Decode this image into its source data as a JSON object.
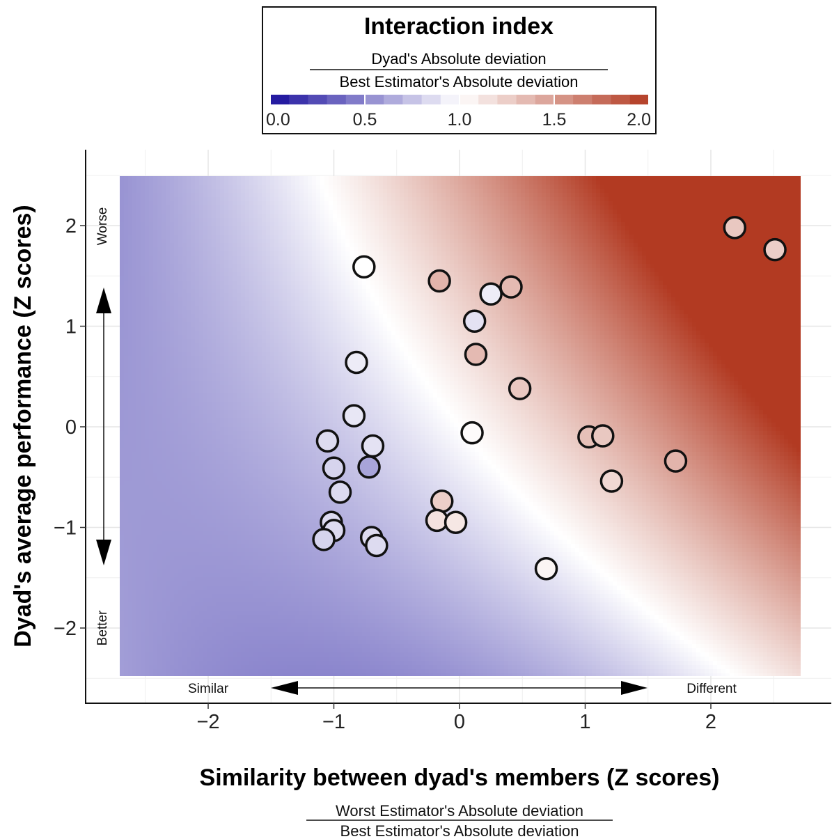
{
  "legend": {
    "title": "Interaction index",
    "numerator": "Dyad's Absolute deviation",
    "denominator": "Best Estimator's Absolute deviation",
    "ticks": [
      "0.0",
      "0.5",
      "1.0",
      "1.5",
      "2.0"
    ]
  },
  "colors": {
    "low": "#1a0f9c",
    "mid": "#ffffff",
    "high": "#b23a22",
    "point_stroke": "#111111",
    "grid": "#efefef"
  },
  "annotations": {
    "worse": "Worse",
    "better": "Better",
    "similar": "Similar",
    "different": "Different"
  },
  "x_subtitle": {
    "numerator": "Worst Estimator's Absolute deviation",
    "denominator": "Best Estimator's Absolute deviation"
  },
  "chart_data": {
    "type": "scatter",
    "title": "",
    "xlabel": "Similarity between dyad's members (Z scores)",
    "ylabel": "Dyad's average performance (Z scores)",
    "xlim": [
      -2.95,
      2.95
    ],
    "ylim": [
      -2.75,
      2.75
    ],
    "x_ticks": [
      -2,
      -1,
      0,
      1,
      2
    ],
    "y_ticks": [
      -2,
      -1,
      0,
      1,
      2
    ],
    "x_tick_labels": [
      "−2",
      "−1",
      "0",
      "1",
      "2"
    ],
    "y_tick_labels": [
      "−2",
      "−1",
      "0",
      "1",
      "2"
    ],
    "background": "heatmap of interaction index (blue < 1, white = 1, red > 1)",
    "grid": true,
    "legend_position": "top",
    "points": [
      {
        "x": 2.19,
        "y": 1.98,
        "index": 1.28
      },
      {
        "x": 2.51,
        "y": 1.76,
        "index": 1.25
      },
      {
        "x": -0.76,
        "y": 1.59,
        "index": 1.0
      },
      {
        "x": -0.16,
        "y": 1.45,
        "index": 1.38
      },
      {
        "x": 0.41,
        "y": 1.39,
        "index": 1.35
      },
      {
        "x": 0.25,
        "y": 1.32,
        "index": 0.92
      },
      {
        "x": 0.12,
        "y": 1.05,
        "index": 0.88
      },
      {
        "x": 0.13,
        "y": 0.72,
        "index": 1.35
      },
      {
        "x": -0.82,
        "y": 0.64,
        "index": 0.92
      },
      {
        "x": 0.48,
        "y": 0.38,
        "index": 1.28
      },
      {
        "x": -0.84,
        "y": 0.11,
        "index": 0.9
      },
      {
        "x": 0.1,
        "y": -0.06,
        "index": 1.02
      },
      {
        "x": 1.03,
        "y": -0.1,
        "index": 1.32
      },
      {
        "x": 1.14,
        "y": -0.09,
        "index": 1.28
      },
      {
        "x": -1.05,
        "y": -0.14,
        "index": 0.85
      },
      {
        "x": -0.69,
        "y": -0.19,
        "index": 0.88
      },
      {
        "x": 1.72,
        "y": -0.34,
        "index": 1.38
      },
      {
        "x": -1.0,
        "y": -0.41,
        "index": 0.82
      },
      {
        "x": -0.72,
        "y": -0.4,
        "index": 0.62
      },
      {
        "x": 1.21,
        "y": -0.54,
        "index": 1.2
      },
      {
        "x": -0.95,
        "y": -0.65,
        "index": 0.85
      },
      {
        "x": -0.14,
        "y": -0.74,
        "index": 1.25
      },
      {
        "x": -1.02,
        "y": -0.95,
        "index": 0.85
      },
      {
        "x": -0.18,
        "y": -0.93,
        "index": 1.15
      },
      {
        "x": -0.03,
        "y": -0.95,
        "index": 1.12
      },
      {
        "x": -1.0,
        "y": -1.03,
        "index": 0.85
      },
      {
        "x": -1.08,
        "y": -1.12,
        "index": 0.82
      },
      {
        "x": -0.7,
        "y": -1.1,
        "index": 0.85
      },
      {
        "x": -0.66,
        "y": -1.18,
        "index": 0.85
      },
      {
        "x": 0.69,
        "y": -1.41,
        "index": 1.05
      }
    ]
  }
}
